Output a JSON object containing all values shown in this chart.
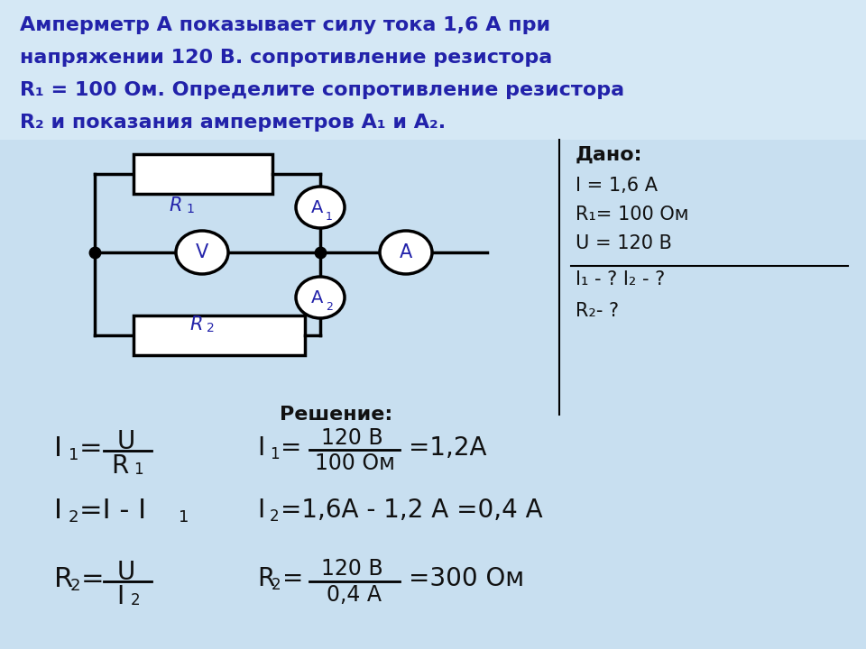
{
  "bg_color": "#c8e0f0",
  "bg_top": "#ddeef8",
  "text_color_blue": "#2222aa",
  "text_color_dark": "#111111",
  "line_color": "#000000",
  "title_lines": [
    "Амперметр А показывает силу тока 1,6 А при",
    "напряжении 120 В. сопротивление резистора",
    "R₁ = 100 Ом. Определите сопротивление резистора",
    "R₂ и показания амперметров А₁ и А₂."
  ],
  "dado_title": "Дано:",
  "dado_I": "I = 1,6 А",
  "dado_R1": "R₁= 100 Ом",
  "dado_U": "U = 120 В",
  "dado_find1": "I₁ - ? I₂ - ?",
  "dado_find2": "R₂- ?",
  "reshenie": "Решение:"
}
